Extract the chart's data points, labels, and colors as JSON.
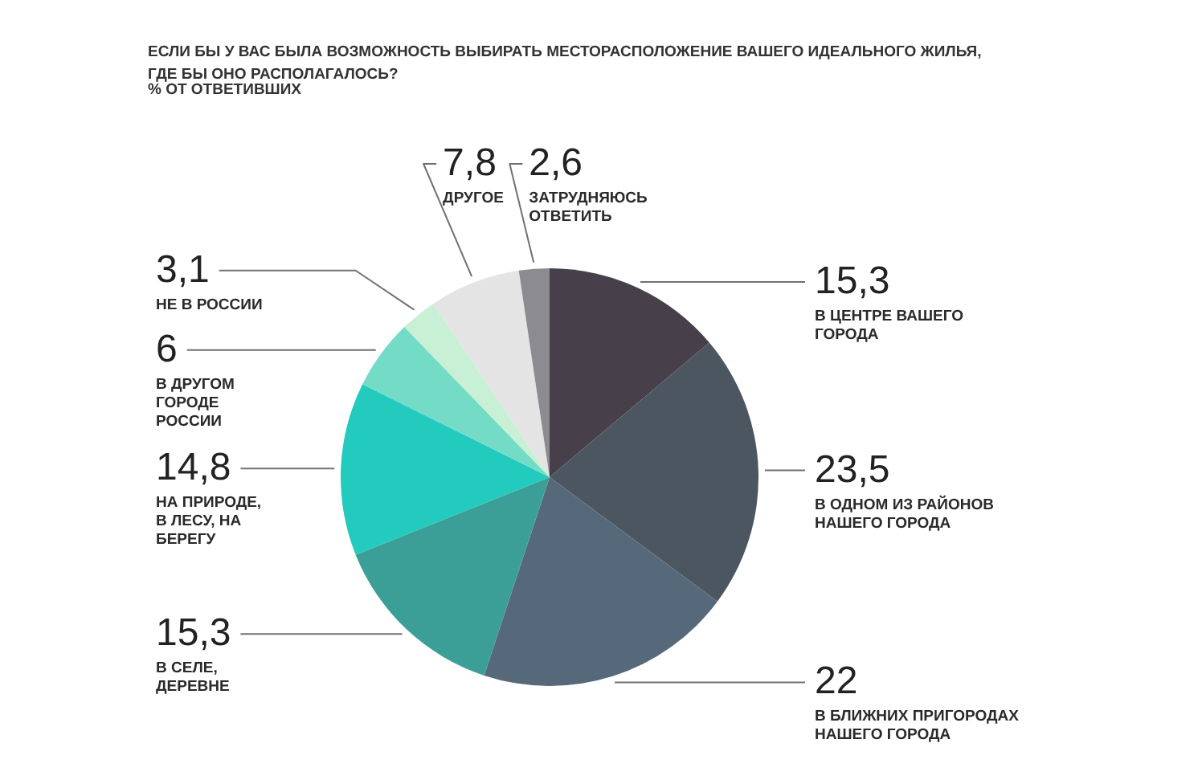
{
  "chart_data": {
    "type": "pie",
    "title": "ЕСЛИ БЫ У ВАС БЫЛА ВОЗМОЖНОСТЬ ВЫБИРАТЬ МЕСТОРАСПОЛОЖЕНИЕ ВАШЕГО ИДЕАЛЬНОГО ЖИЛЬЯ, ГДЕ БЫ ОНО РАСПОЛАГАЛОСЬ?",
    "subtitle": "% ОТ ОТВЕТИВШИХ",
    "categories": [
      "В ЦЕНТРЕ ВАШЕГО ГОРОДА",
      "В ОДНОМ ИЗ РАЙОНОВ НАШЕГО ГОРОДА",
      "В БЛИЖНИХ ПРИГОРОДАХ НАШЕГО ГОРОДА",
      "В СЕЛЕ, ДЕРЕВНЕ",
      "НА ПРИРОДЕ, В ЛЕСУ, НА БЕРЕГУ",
      "В ДРУГОМ ГОРОДЕ РОССИИ",
      "НЕ В РОССИИ",
      "ДРУГОЕ",
      "ЗАТРУДНЯЮСЬ ОТВЕТИТЬ"
    ],
    "values": [
      15.3,
      23.5,
      22,
      15.3,
      14.8,
      6,
      3.1,
      7.8,
      2.6
    ],
    "value_labels": [
      "15,3",
      "23,5",
      "22",
      "15,3",
      "14,8",
      "6",
      "3,1",
      "7,8",
      "2,6"
    ],
    "colors": [
      "#47404a",
      "#4b5660",
      "#56697a",
      "#3b9f98",
      "#22cbbd",
      "#74dcc6",
      "#c8f0d4",
      "#e4e4e4",
      "#8c8b90"
    ]
  }
}
